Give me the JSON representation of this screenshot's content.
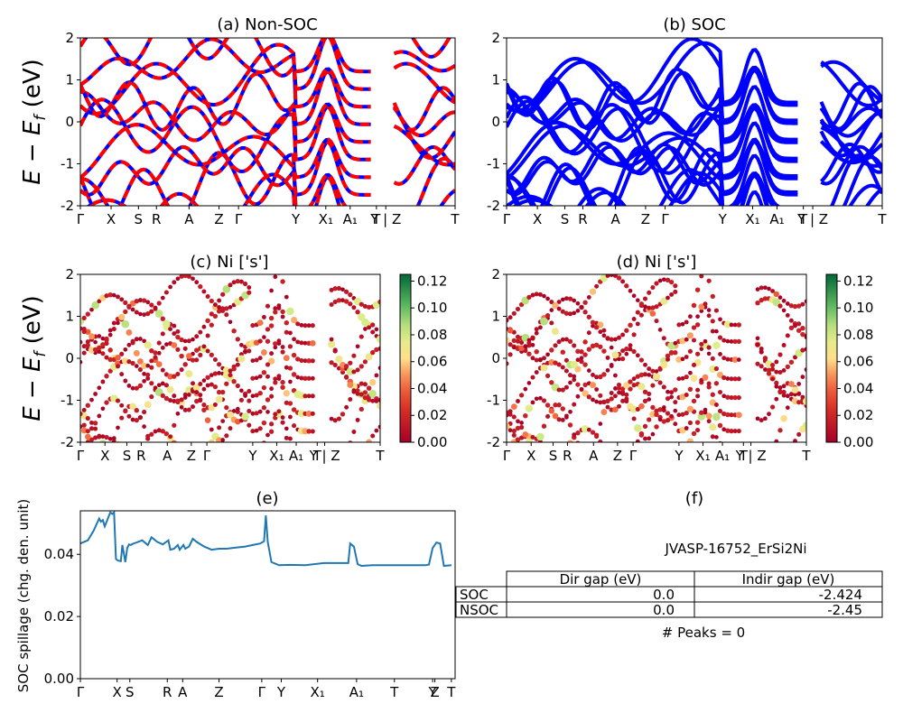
{
  "chart_data": [
    {
      "id": "a",
      "type": "line",
      "title": "(a) Non-SOC",
      "ylabel": "$E - E_f$ (eV)",
      "ylim": [
        -2,
        2
      ],
      "yticks": [
        -2,
        -1,
        0,
        1,
        2
      ],
      "xticks": [
        "Γ",
        "X",
        "S",
        "R",
        "A",
        "Z",
        "Γ",
        "Y",
        "X₁",
        "A₁",
        "T",
        "Y | Z",
        "T"
      ],
      "xtick_pos": [
        0,
        0.082,
        0.155,
        0.203,
        0.29,
        0.37,
        0.422,
        0.575,
        0.655,
        0.72,
        0.79,
        0.815,
        1.0
      ],
      "series": [
        {
          "color": "#0000ff",
          "style": "solid",
          "values": "bands"
        },
        {
          "color": "#ff0000",
          "style": "dashed",
          "values": "bands"
        }
      ]
    },
    {
      "id": "b",
      "type": "line",
      "title": "(b) SOC",
      "ylim": [
        -2,
        2
      ],
      "yticks": [
        -2,
        -1,
        0,
        1,
        2
      ],
      "xticks": [
        "Γ",
        "X",
        "S",
        "R",
        "A",
        "Z",
        "Γ",
        "Y",
        "X₁",
        "A₁",
        "T",
        "Y | Z",
        "T"
      ],
      "xtick_pos": [
        0,
        0.082,
        0.155,
        0.203,
        0.29,
        0.37,
        0.422,
        0.575,
        0.655,
        0.72,
        0.79,
        0.815,
        1.0
      ],
      "series": [
        {
          "color": "#0000ff",
          "style": "solid",
          "values": "bands"
        }
      ]
    },
    {
      "id": "c",
      "type": "scatter",
      "title": "(c)  Ni ['s']",
      "ylabel": "$E - E_f$ (eV)",
      "ylim": [
        -2,
        2
      ],
      "yticks": [
        -2,
        -1,
        0,
        1,
        2
      ],
      "xticks": [
        "Γ",
        "X",
        "S",
        "R",
        "A",
        "Z",
        "Γ",
        "Y",
        "X₁",
        "A₁",
        "T",
        "Y | Z",
        "T"
      ],
      "xtick_pos": [
        0,
        0.082,
        0.155,
        0.203,
        0.29,
        0.37,
        0.422,
        0.575,
        0.655,
        0.72,
        0.79,
        0.815,
        1.0
      ],
      "colorbar": {
        "min": 0.0,
        "max": 0.125,
        "ticks": [
          "0.00",
          "0.02",
          "0.04",
          "0.06",
          "0.08",
          "0.10",
          "0.12"
        ],
        "colormap": "RdYlGn"
      }
    },
    {
      "id": "d",
      "type": "scatter",
      "title": "(d) Ni ['s']",
      "ylim": [
        -2,
        2
      ],
      "yticks": [
        -2,
        -1,
        0,
        1,
        2
      ],
      "xticks": [
        "Γ",
        "X",
        "S",
        "R",
        "A",
        "Z",
        "Γ",
        "Y",
        "X₁",
        "A₁",
        "T",
        "Y | Z",
        "T"
      ],
      "xtick_pos": [
        0,
        0.082,
        0.155,
        0.203,
        0.29,
        0.37,
        0.422,
        0.575,
        0.655,
        0.72,
        0.79,
        0.815,
        1.0
      ],
      "colorbar": {
        "min": 0.0,
        "max": 0.125,
        "ticks": [
          "0.00",
          "0.02",
          "0.04",
          "0.06",
          "0.08",
          "0.10",
          "0.12"
        ],
        "colormap": "RdYlGn"
      }
    },
    {
      "id": "e",
      "type": "line",
      "title": "(e)",
      "ylabel": "SOC spillage (chg. den. unit)",
      "ylim": [
        0,
        0.054
      ],
      "yticks": [
        "0.00",
        "0.02",
        "0.04"
      ],
      "ytick_vals": [
        0,
        0.02,
        0.04
      ],
      "xticks": [
        "Γ",
        "X",
        "S",
        "R",
        "A",
        "Z",
        "Γ",
        "Y",
        "X₁",
        "A₁",
        "T",
        "Y",
        "Z",
        "T"
      ],
      "xtick_pos": [
        0,
        0.098,
        0.132,
        0.232,
        0.273,
        0.37,
        0.484,
        0.536,
        0.633,
        0.737,
        0.838,
        0.94,
        0.946,
        0.99
      ],
      "series": [
        {
          "color": "#1f77b4",
          "x": [
            0,
            0.02,
            0.035,
            0.05,
            0.055,
            0.06,
            0.065,
            0.07,
            0.075,
            0.08,
            0.085,
            0.09,
            0.095,
            0.1,
            0.108,
            0.112,
            0.12,
            0.125,
            0.13,
            0.135,
            0.14,
            0.15,
            0.165,
            0.18,
            0.19,
            0.2,
            0.205,
            0.22,
            0.235,
            0.24,
            0.25,
            0.26,
            0.265,
            0.275,
            0.28,
            0.29,
            0.3,
            0.31,
            0.33,
            0.35,
            0.37,
            0.39,
            0.41,
            0.44,
            0.46,
            0.48,
            0.49,
            0.495,
            0.5,
            0.51,
            0.53,
            0.56,
            0.6,
            0.65,
            0.7,
            0.715,
            0.72,
            0.73,
            0.74,
            0.75,
            0.78,
            0.82,
            0.87,
            0.92,
            0.93,
            0.94,
            0.95,
            0.96,
            0.97,
            0.99
          ],
          "values": [
            0.0435,
            0.0445,
            0.0475,
            0.0515,
            0.0505,
            0.051,
            0.049,
            0.0505,
            0.052,
            0.0535,
            0.053,
            0.0535,
            0.0385,
            0.038,
            0.0378,
            0.043,
            0.0375,
            0.042,
            0.0432,
            0.043,
            0.0434,
            0.0438,
            0.0445,
            0.043,
            0.0455,
            0.0445,
            0.044,
            0.0432,
            0.0445,
            0.0415,
            0.0418,
            0.043,
            0.0415,
            0.043,
            0.0418,
            0.0425,
            0.045,
            0.044,
            0.0425,
            0.0415,
            0.0418,
            0.0418,
            0.0421,
            0.0425,
            0.043,
            0.0435,
            0.0442,
            0.0525,
            0.044,
            0.0375,
            0.0365,
            0.0366,
            0.0365,
            0.0372,
            0.0372,
            0.0372,
            0.0435,
            0.0425,
            0.0368,
            0.0363,
            0.0365,
            0.0365,
            0.0365,
            0.0365,
            0.0367,
            0.042,
            0.0438,
            0.0435,
            0.0363,
            0.0365
          ]
        }
      ]
    },
    {
      "id": "f",
      "type": "table",
      "title": "(f)",
      "subtitle": "JVASP-16752_ErSi2Ni",
      "columns": [
        "Dir gap (eV)",
        "Indir gap (eV)"
      ],
      "rows": [
        {
          "label": "SOC",
          "values": [
            "0.0",
            "-2.424"
          ]
        },
        {
          "label": "NSOC",
          "values": [
            "0.0",
            "-2.45"
          ]
        }
      ],
      "footer": "# Peaks = 0"
    }
  ]
}
